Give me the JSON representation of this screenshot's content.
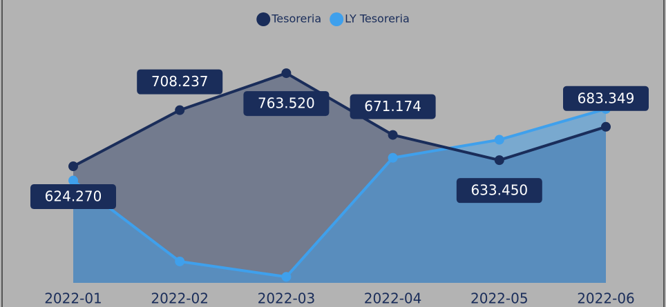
{
  "chart_data": {
    "type": "area",
    "categories": [
      "2022-01",
      "2022-02",
      "2022-03",
      "2022-04",
      "2022-05",
      "2022-06"
    ],
    "series": [
      {
        "name": "Tesoreria",
        "color": "#1a2d5a",
        "values": [
          624.27,
          708.237,
          763.52,
          671.174,
          633.45,
          683.349
        ],
        "value_labels": [
          "624.270",
          "708.237",
          "763.520",
          "671.174",
          "633.450",
          "683.349"
        ]
      },
      {
        "name": "LY Tesoreria",
        "color": "#3fa0ec",
        "values": [
          603,
          482,
          459,
          637,
          664,
          710
        ]
      }
    ],
    "ylim": [
      450,
      800
    ],
    "legend": "top"
  }
}
